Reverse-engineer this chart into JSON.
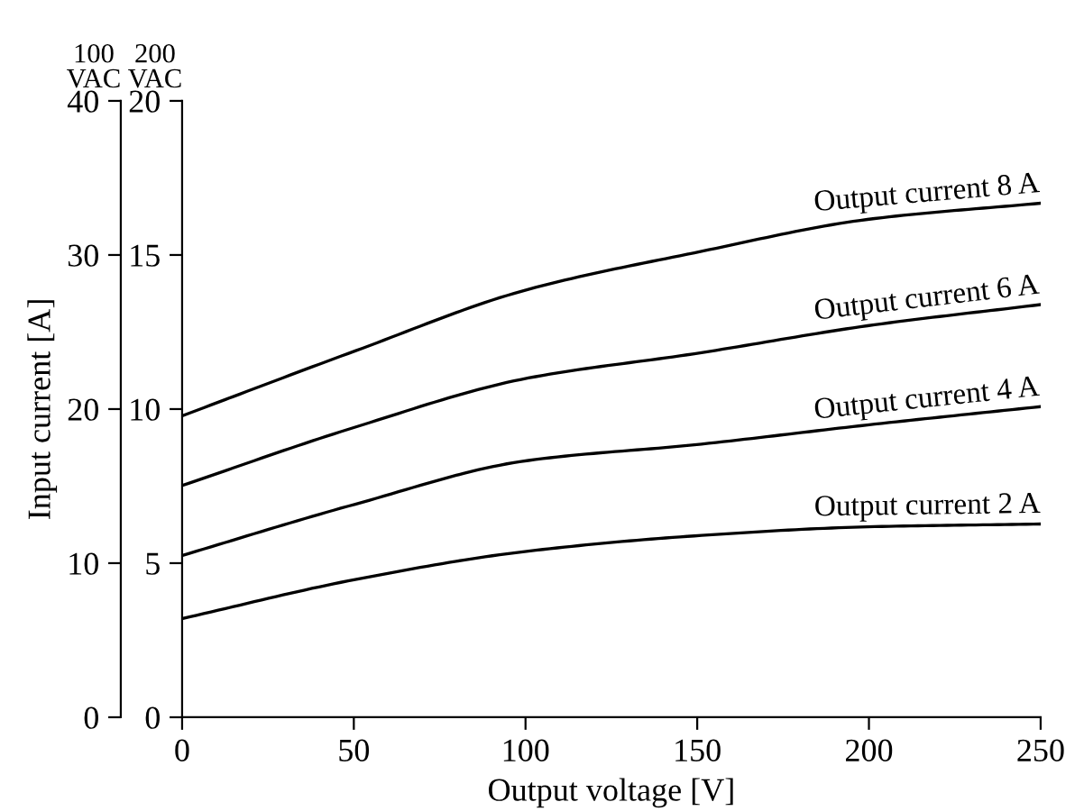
{
  "chart_data": {
    "type": "line",
    "x": [
      0,
      50,
      100,
      150,
      200,
      250
    ],
    "series": [
      {
        "name": "Output current 8 A",
        "color": "#000000",
        "axis": "y2",
        "values": [
          9.78,
          11.87,
          13.86,
          15.09,
          16.16,
          16.68
        ]
      },
      {
        "name": "Output current 6 A",
        "color": "#000000",
        "axis": "y2",
        "values": [
          7.52,
          9.4,
          10.99,
          11.81,
          12.71,
          13.39
        ]
      },
      {
        "name": "Output current 4 A",
        "color": "#000000",
        "axis": "y2",
        "values": [
          5.25,
          6.9,
          8.32,
          8.85,
          9.49,
          10.08
        ]
      },
      {
        "name": "Output current 2 A",
        "color": "#000000",
        "axis": "y2",
        "values": [
          3.2,
          4.46,
          5.38,
          5.89,
          6.18,
          6.27
        ]
      }
    ],
    "xlabel": "Output voltage [V]",
    "ylabel": "Input current [A]",
    "annotations": [
      "100 VAC",
      "200 VAC"
    ],
    "xlim": [
      0,
      250
    ],
    "xticks": [
      0,
      50,
      100,
      150,
      200,
      250
    ],
    "ylim": [
      0,
      40
    ],
    "yticks": [
      0,
      10,
      20,
      30,
      40
    ],
    "y2lim": [
      0,
      20
    ],
    "y2ticks": [
      0,
      5,
      10,
      15,
      20
    ],
    "grid": false,
    "legend": false,
    "marker": "none",
    "line_style": "solid"
  }
}
